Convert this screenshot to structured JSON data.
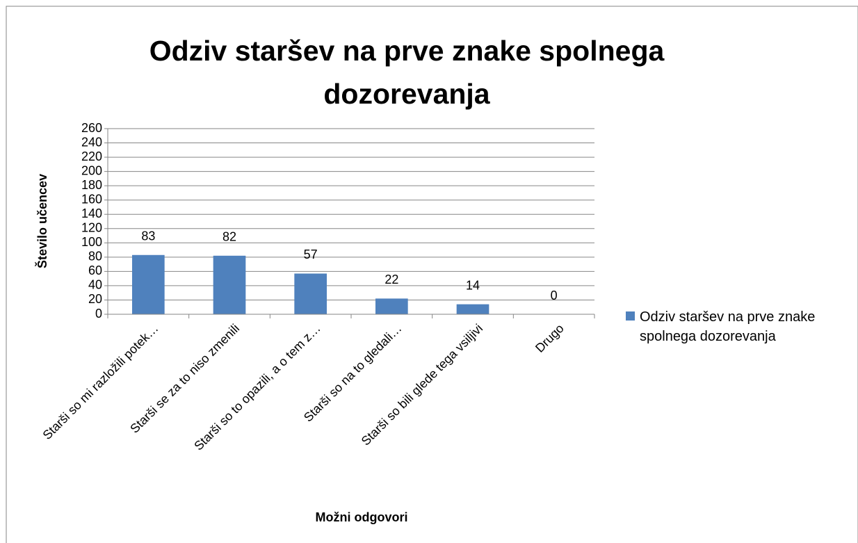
{
  "chart_data": {
    "type": "bar",
    "title": "Odziv staršev na prve znake spolnega dozorevanja",
    "x_label": "Možni odgovori",
    "y_label": "Število učencev",
    "categories": [
      "Starši so mi razložili potek…",
      "Starši se za to niso zmenili",
      "Starši so to opazili, a o tem z…",
      "Starši so na to gledali…",
      "Starši so bili glede tega vsiljivi",
      "Drugo"
    ],
    "series": [
      {
        "name": "Odziv staršev na prve znake spolnega dozorevanja",
        "color": "#4f81bd",
        "values": [
          83,
          82,
          57,
          22,
          14,
          0
        ]
      }
    ],
    "ylim": [
      0,
      260
    ],
    "yticks": [
      0,
      20,
      40,
      60,
      80,
      100,
      120,
      140,
      160,
      180,
      200,
      220,
      240,
      260
    ],
    "grid": true,
    "legend": "right"
  }
}
